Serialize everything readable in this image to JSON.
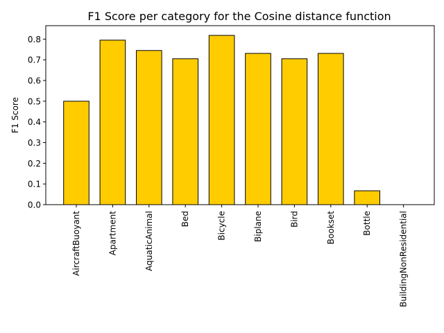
{
  "chart_data": {
    "type": "bar",
    "title": "F1 Score per category for the Cosine distance function",
    "xlabel": "",
    "ylabel": "F1 Score",
    "categories": [
      "AircraftBuoyant",
      "Apartment",
      "AquaticAnimal",
      "Bed",
      "Bicycle",
      "Biplane",
      "Bird",
      "Bookset",
      "Bottle",
      "BuildingNonResidential"
    ],
    "values": [
      0.5,
      0.795,
      0.745,
      0.705,
      0.818,
      0.731,
      0.705,
      0.731,
      0.067,
      0.0
    ],
    "ylim": [
      0,
      0.865
    ],
    "yticks": [
      "0.0",
      "0.1",
      "0.2",
      "0.3",
      "0.4",
      "0.5",
      "0.6",
      "0.7",
      "0.8"
    ],
    "bar_color": "#ffcc00",
    "bar_edge_color": "#000000",
    "grid": false,
    "legend": "none"
  }
}
